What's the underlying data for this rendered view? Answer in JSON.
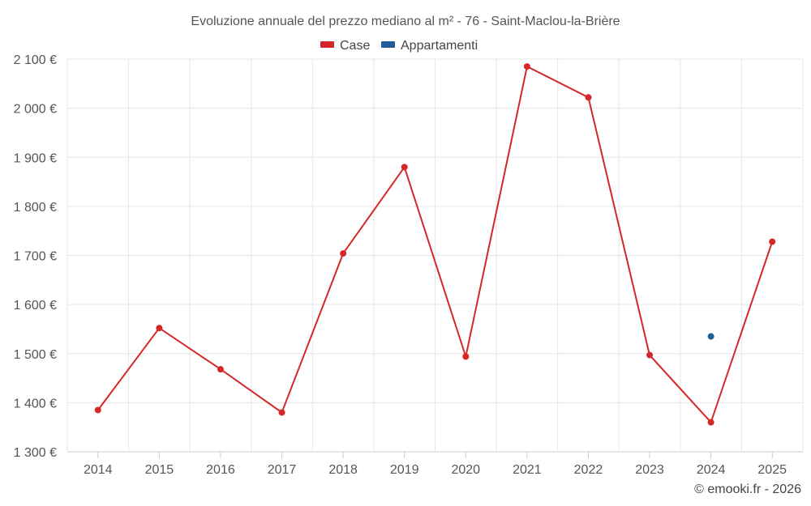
{
  "chart_data": {
    "type": "line",
    "title": "Evoluzione annuale del prezzo mediano al m² - 76 - Saint-Maclou-la-Brière",
    "categories": [
      "2014",
      "2015",
      "2016",
      "2017",
      "2018",
      "2019",
      "2020",
      "2021",
      "2022",
      "2023",
      "2024",
      "2025"
    ],
    "series": [
      {
        "name": "Case",
        "color": "#d62728",
        "values": [
          1385,
          1552,
          1468,
          1380,
          1704,
          1880,
          1494,
          2085,
          2022,
          1497,
          1360,
          1728
        ]
      },
      {
        "name": "Appartamenti",
        "color": "#1f5f99",
        "values": [
          null,
          null,
          null,
          null,
          null,
          null,
          null,
          null,
          null,
          null,
          1535,
          null
        ]
      }
    ],
    "y_ticks": [
      "1 300 €",
      "1 400 €",
      "1 500 €",
      "1 600 €",
      "1 700 €",
      "1 800 €",
      "1 900 €",
      "2 000 €",
      "2 100 €"
    ],
    "y_tick_values": [
      1300,
      1400,
      1500,
      1600,
      1700,
      1800,
      1900,
      2000,
      2100
    ],
    "ylim": [
      1300,
      2100
    ],
    "xlabel": "",
    "ylabel": "",
    "grid": true,
    "legend_position": "top-center"
  },
  "credit": "© emooki.fr - 2026"
}
